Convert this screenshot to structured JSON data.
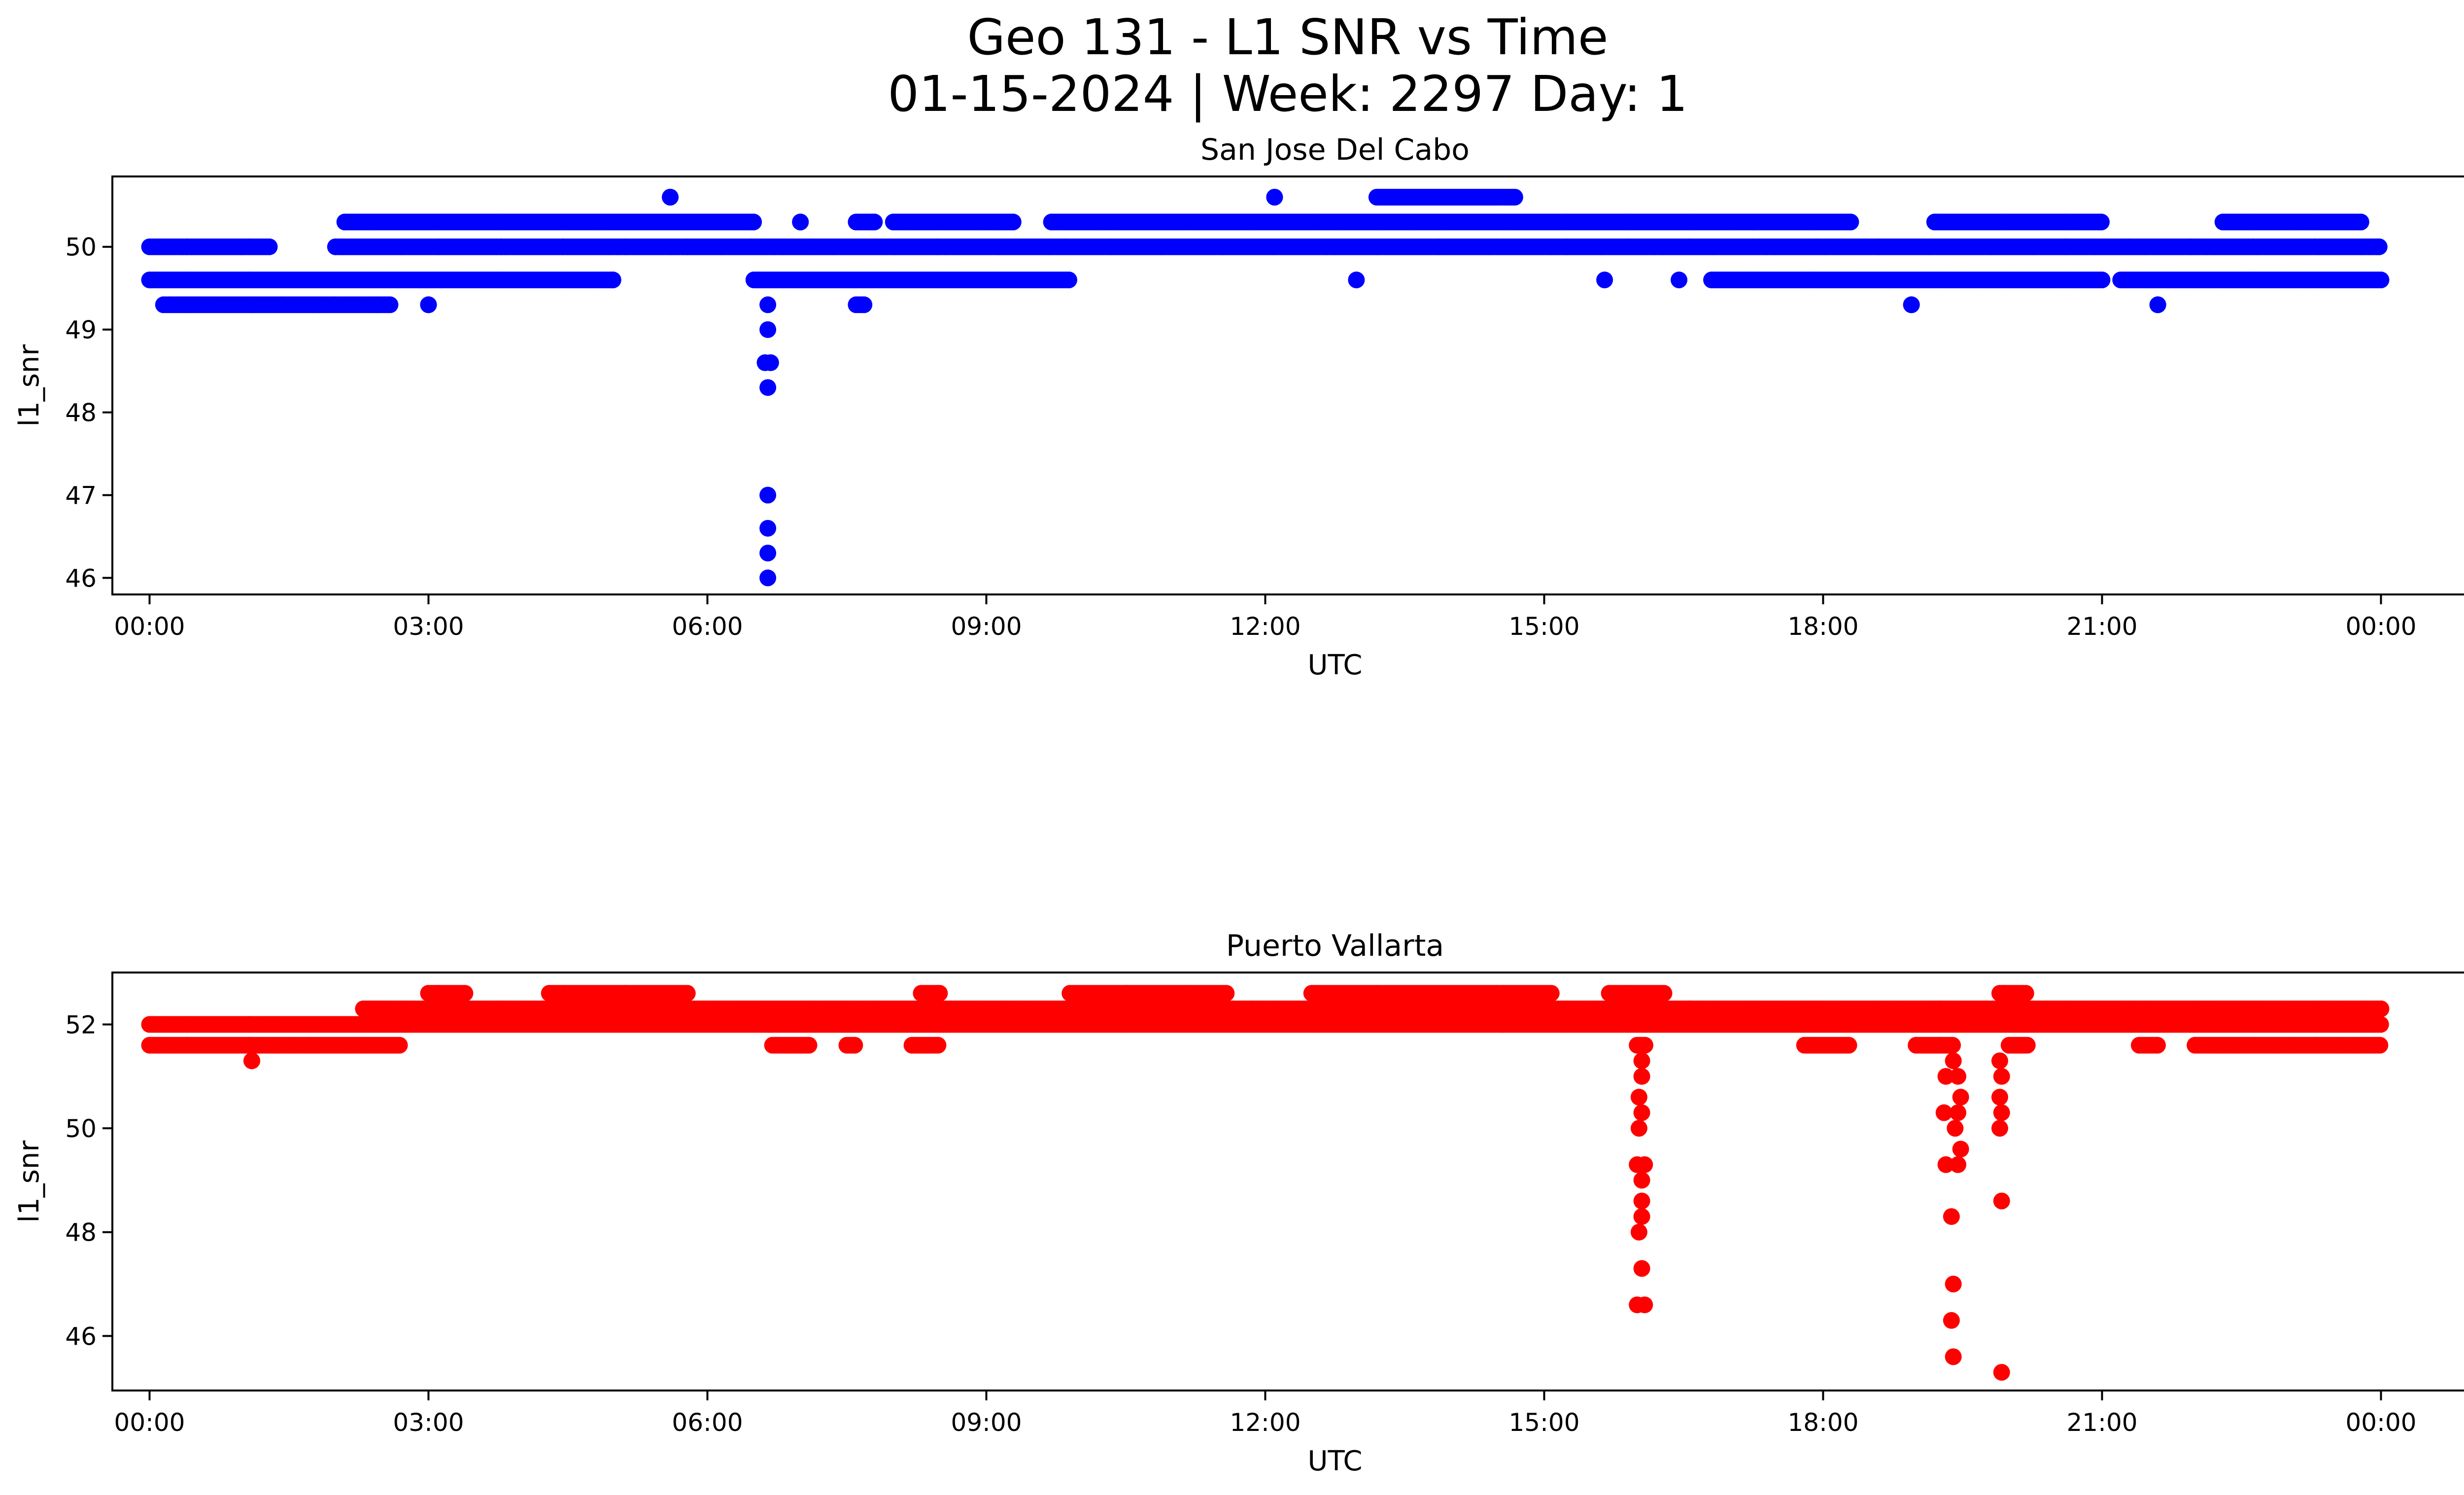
{
  "figure": {
    "title_line1": "Geo 131 - L1 SNR vs Time",
    "title_line2": "01-15-2024 | Week: 2297 Day: 1"
  },
  "chart_data": [
    {
      "type": "scatter",
      "title": "San Jose Del Cabo",
      "xlabel": "UTC",
      "ylabel": "l1_snr",
      "color": "#0000ff",
      "x_unit": "hours UTC",
      "xlim": [
        -0.4,
        25.9
      ],
      "ylim": [
        45.8,
        50.85
      ],
      "x_ticks": [
        0,
        3,
        6,
        9,
        12,
        15,
        18,
        21,
        24
      ],
      "x_tick_labels": [
        "00:00",
        "03:00",
        "06:00",
        "09:00",
        "12:00",
        "15:00",
        "18:00",
        "21:00",
        "00:00"
      ],
      "y_ticks": [
        46,
        47,
        48,
        49,
        50
      ],
      "y_tick_labels": [
        "46",
        "47",
        "48",
        "49",
        "50"
      ],
      "grid": false,
      "bands": [
        {
          "y": 50.0,
          "ranges": [
            [
              0.0,
              1.3
            ],
            [
              2.0,
              24.0
            ]
          ]
        },
        {
          "y": 49.6,
          "ranges": [
            [
              0.0,
              5.0
            ],
            [
              6.5,
              9.9
            ],
            [
              16.8,
              21.0
            ],
            [
              21.2,
              24.0
            ]
          ]
        },
        {
          "y": 50.3,
          "ranges": [
            [
              2.1,
              6.5
            ],
            [
              7.0,
              7.0
            ],
            [
              7.6,
              7.8
            ],
            [
              8.0,
              9.3
            ],
            [
              9.7,
              18.3
            ],
            [
              19.2,
              21.0
            ],
            [
              22.3,
              23.8
            ]
          ]
        },
        {
          "y": 49.3,
          "ranges": [
            [
              0.15,
              2.6
            ],
            [
              3.0,
              3.0
            ],
            [
              7.6,
              7.7
            ],
            [
              18.95,
              18.95
            ],
            [
              21.6,
              21.6
            ]
          ]
        },
        {
          "y": 50.6,
          "ranges": [
            [
              5.6,
              5.6
            ],
            [
              12.1,
              12.1
            ],
            [
              13.2,
              14.7
            ]
          ]
        }
      ],
      "points": [
        {
          "x": 6.65,
          "y": 49.3
        },
        {
          "x": 6.65,
          "y": 49.0
        },
        {
          "x": 6.62,
          "y": 48.6
        },
        {
          "x": 6.68,
          "y": 48.6
        },
        {
          "x": 6.65,
          "y": 48.3
        },
        {
          "x": 6.65,
          "y": 47.0
        },
        {
          "x": 6.65,
          "y": 46.6
        },
        {
          "x": 6.65,
          "y": 46.3
        },
        {
          "x": 6.65,
          "y": 46.0
        },
        {
          "x": 4.98,
          "y": 49.6
        },
        {
          "x": 12.98,
          "y": 49.6
        },
        {
          "x": 15.65,
          "y": 49.6
        },
        {
          "x": 16.45,
          "y": 49.6
        }
      ]
    },
    {
      "type": "scatter",
      "title": "Puerto Vallarta",
      "xlabel": "UTC",
      "ylabel": "l1_snr",
      "color": "#ff0000",
      "x_unit": "hours UTC",
      "xlim": [
        -0.4,
        25.9
      ],
      "ylim": [
        44.95,
        53.0
      ],
      "x_ticks": [
        0,
        3,
        6,
        9,
        12,
        15,
        18,
        21,
        24
      ],
      "x_tick_labels": [
        "00:00",
        "03:00",
        "06:00",
        "09:00",
        "12:00",
        "15:00",
        "18:00",
        "21:00",
        "00:00"
      ],
      "y_ticks": [
        46,
        48,
        50,
        52
      ],
      "y_tick_labels": [
        "46",
        "48",
        "50",
        "52"
      ],
      "grid": false,
      "bands": [
        {
          "y": 52.0,
          "ranges": [
            [
              0.0,
              24.0
            ]
          ]
        },
        {
          "y": 52.3,
          "ranges": [
            [
              2.3,
              24.0
            ]
          ]
        },
        {
          "y": 51.6,
          "ranges": [
            [
              0.0,
              2.7
            ],
            [
              6.7,
              7.1
            ],
            [
              7.5,
              7.6
            ],
            [
              8.2,
              8.5
            ],
            [
              16.0,
              16.1
            ],
            [
              17.8,
              18.3
            ],
            [
              19.0,
              19.4
            ],
            [
              20.0,
              20.2
            ],
            [
              21.4,
              21.6
            ],
            [
              22.0,
              24.0
            ]
          ]
        },
        {
          "y": 52.6,
          "ranges": [
            [
              3.0,
              3.4
            ],
            [
              4.3,
              5.8
            ],
            [
              8.3,
              8.5
            ],
            [
              9.9,
              11.6
            ],
            [
              12.5,
              15.1
            ],
            [
              15.7,
              16.3
            ],
            [
              19.9,
              20.2
            ]
          ]
        },
        {
          "y": 51.3,
          "ranges": [
            [
              1.1,
              1.1
            ]
          ]
        }
      ],
      "points": [
        {
          "x": 16.05,
          "y": 51.3
        },
        {
          "x": 16.05,
          "y": 51.0
        },
        {
          "x": 16.02,
          "y": 50.6
        },
        {
          "x": 16.05,
          "y": 50.3
        },
        {
          "x": 16.02,
          "y": 50.0
        },
        {
          "x": 16.0,
          "y": 49.3
        },
        {
          "x": 16.08,
          "y": 49.3
        },
        {
          "x": 16.05,
          "y": 49.0
        },
        {
          "x": 16.05,
          "y": 48.6
        },
        {
          "x": 16.05,
          "y": 48.3
        },
        {
          "x": 16.02,
          "y": 48.0
        },
        {
          "x": 16.05,
          "y": 47.3
        },
        {
          "x": 16.0,
          "y": 46.6
        },
        {
          "x": 16.08,
          "y": 46.6
        },
        {
          "x": 19.4,
          "y": 51.3
        },
        {
          "x": 19.32,
          "y": 51.0
        },
        {
          "x": 19.45,
          "y": 51.0
        },
        {
          "x": 19.48,
          "y": 50.6
        },
        {
          "x": 19.3,
          "y": 50.3
        },
        {
          "x": 19.45,
          "y": 50.3
        },
        {
          "x": 19.42,
          "y": 50.0
        },
        {
          "x": 19.48,
          "y": 49.6
        },
        {
          "x": 19.32,
          "y": 49.3
        },
        {
          "x": 19.45,
          "y": 49.3
        },
        {
          "x": 19.38,
          "y": 48.3
        },
        {
          "x": 19.4,
          "y": 47.0
        },
        {
          "x": 19.38,
          "y": 46.3
        },
        {
          "x": 19.4,
          "y": 45.6
        },
        {
          "x": 19.9,
          "y": 51.3
        },
        {
          "x": 19.92,
          "y": 51.0
        },
        {
          "x": 19.9,
          "y": 50.6
        },
        {
          "x": 19.92,
          "y": 50.3
        },
        {
          "x": 19.9,
          "y": 50.0
        },
        {
          "x": 19.92,
          "y": 48.6
        },
        {
          "x": 19.92,
          "y": 45.3
        }
      ]
    }
  ]
}
